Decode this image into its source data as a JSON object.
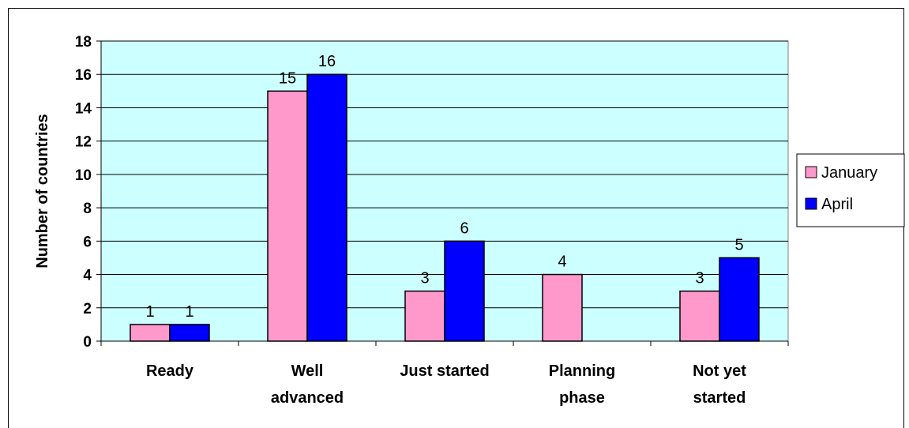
{
  "chart_data": {
    "type": "bar",
    "title": "",
    "xlabel": "",
    "ylabel": "Number of countries",
    "categories": [
      [
        "Ready"
      ],
      [
        "Well",
        "advanced"
      ],
      [
        "Just started"
      ],
      [
        "Planning",
        "phase"
      ],
      [
        "Not yet",
        "started"
      ]
    ],
    "series": [
      {
        "name": "January",
        "values": [
          1,
          15,
          3,
          4,
          3
        ],
        "color": "#ff99cc"
      },
      {
        "name": "April",
        "values": [
          1,
          16,
          6,
          null,
          5
        ],
        "color": "#0000ff"
      }
    ],
    "ylim": [
      0,
      18
    ],
    "yticks": [
      0,
      2,
      4,
      6,
      8,
      10,
      12,
      14,
      16,
      18
    ],
    "plot_background": "#ccffff",
    "grid": true,
    "legend_position": "right"
  }
}
